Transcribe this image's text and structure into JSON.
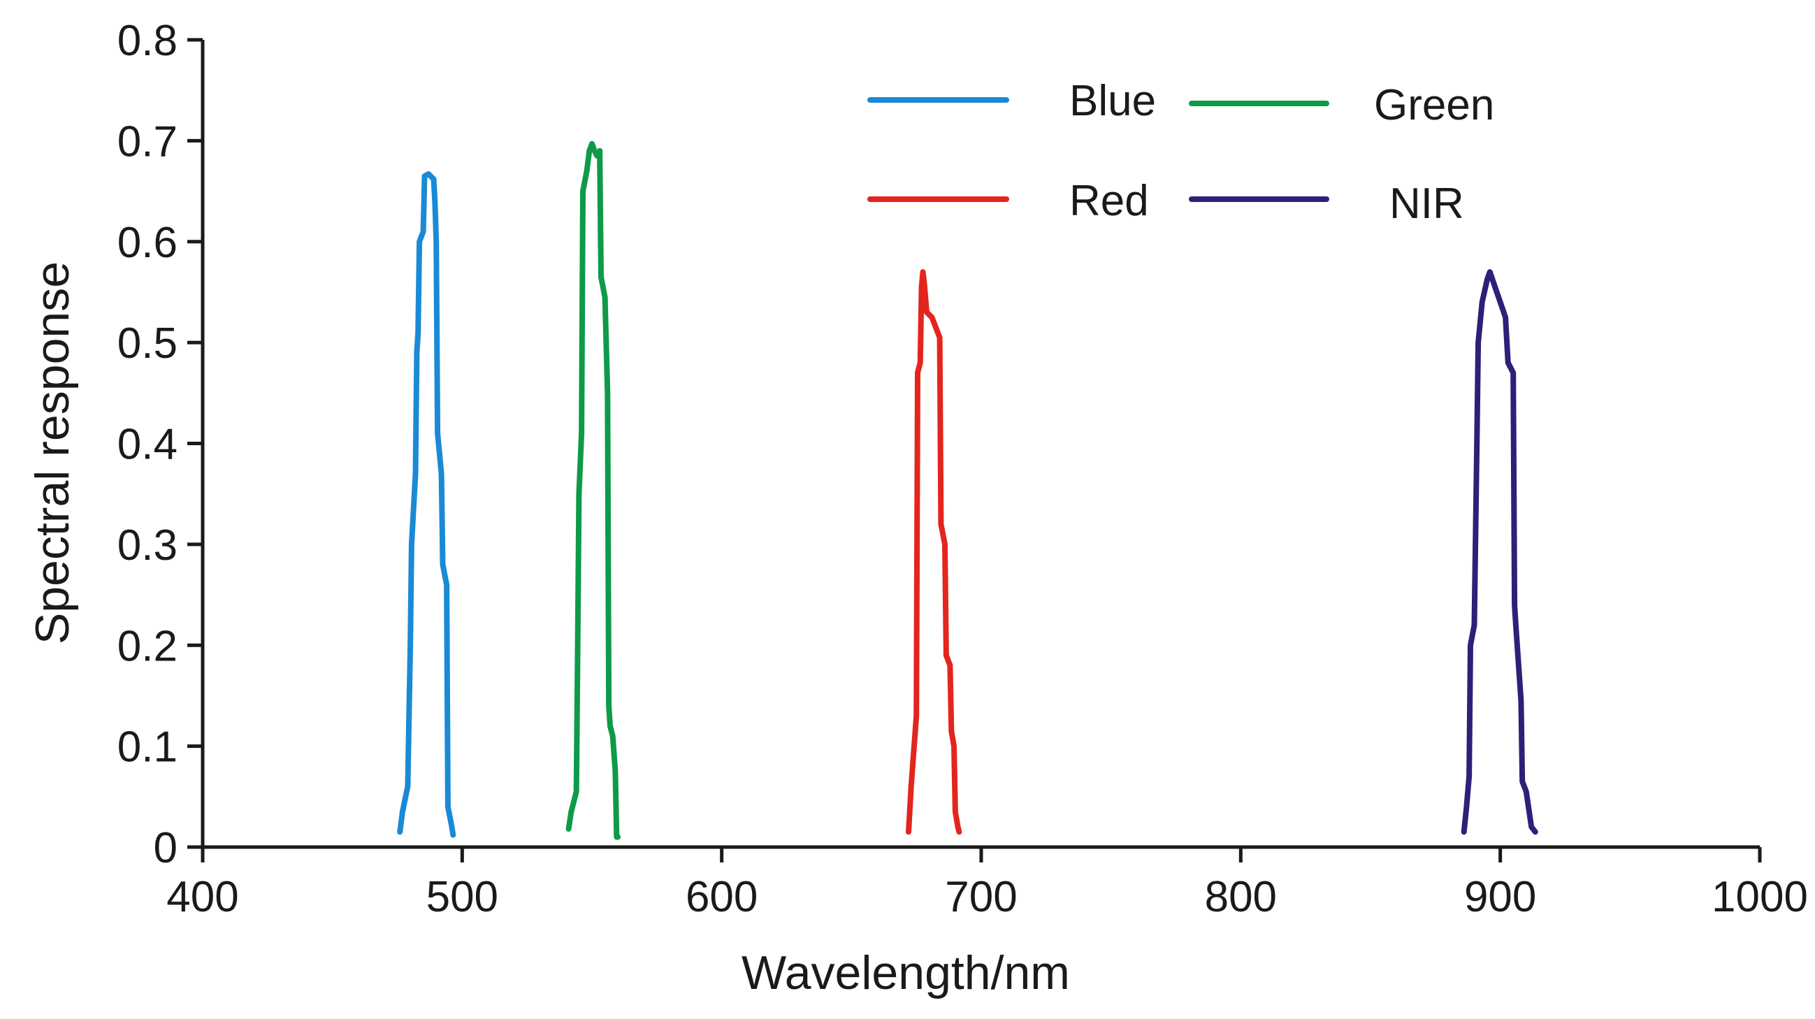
{
  "chart_data": {
    "type": "line",
    "title": "",
    "xlabel": "Wavelength/nm",
    "ylabel": "Spectral response",
    "xlim": [
      400,
      1000
    ],
    "ylim": [
      0,
      0.8
    ],
    "xticks": [
      400,
      500,
      600,
      700,
      800,
      900,
      1000
    ],
    "xtick_labels": [
      "400",
      "500",
      "600",
      "700",
      "800",
      "900",
      "1000"
    ],
    "yticks": [
      0,
      0.1,
      0.2,
      0.3,
      0.4,
      0.5,
      0.6,
      0.7,
      0.8
    ],
    "ytick_labels": [
      "0",
      "0.1",
      "0.2",
      "0.3",
      "0.4",
      "0.5",
      "0.6",
      "0.7",
      "0.8"
    ],
    "grid": false,
    "legend_position": "top-right",
    "series": [
      {
        "name": "Blue",
        "color": "#1a8ad6",
        "points": [
          [
            476,
            0.015
          ],
          [
            477,
            0.035
          ],
          [
            479,
            0.06
          ],
          [
            480,
            0.2
          ],
          [
            480.5,
            0.3
          ],
          [
            482,
            0.37
          ],
          [
            482.5,
            0.49
          ],
          [
            483,
            0.51
          ],
          [
            483.5,
            0.6
          ],
          [
            485,
            0.61
          ],
          [
            485.5,
            0.665
          ],
          [
            487,
            0.667
          ],
          [
            489,
            0.662
          ],
          [
            489.5,
            0.64
          ],
          [
            490,
            0.6
          ],
          [
            490.5,
            0.41
          ],
          [
            492,
            0.37
          ],
          [
            492.5,
            0.28
          ],
          [
            494,
            0.26
          ],
          [
            494.5,
            0.04
          ],
          [
            496,
            0.02
          ],
          [
            496.5,
            0.012
          ]
        ]
      },
      {
        "name": "Green",
        "color": "#0e9a48",
        "points": [
          [
            541,
            0.018
          ],
          [
            542,
            0.035
          ],
          [
            544,
            0.055
          ],
          [
            544.5,
            0.2
          ],
          [
            545,
            0.35
          ],
          [
            546,
            0.41
          ],
          [
            546.5,
            0.65
          ],
          [
            548,
            0.67
          ],
          [
            549,
            0.69
          ],
          [
            550,
            0.697
          ],
          [
            551,
            0.69
          ],
          [
            552,
            0.685
          ],
          [
            553,
            0.69
          ],
          [
            553.5,
            0.565
          ],
          [
            555,
            0.545
          ],
          [
            556,
            0.45
          ],
          [
            556.5,
            0.14
          ],
          [
            557,
            0.12
          ],
          [
            558,
            0.11
          ],
          [
            559,
            0.075
          ],
          [
            559.5,
            0.01
          ],
          [
            560,
            0.01
          ]
        ]
      },
      {
        "name": "Red",
        "color": "#e3251e",
        "points": [
          [
            672,
            0.015
          ],
          [
            673,
            0.06
          ],
          [
            675,
            0.13
          ],
          [
            675.5,
            0.47
          ],
          [
            676.5,
            0.48
          ],
          [
            677,
            0.555
          ],
          [
            677.5,
            0.57
          ],
          [
            678,
            0.56
          ],
          [
            679,
            0.53
          ],
          [
            681,
            0.525
          ],
          [
            684,
            0.505
          ],
          [
            684.5,
            0.32
          ],
          [
            686,
            0.3
          ],
          [
            686.5,
            0.19
          ],
          [
            688,
            0.18
          ],
          [
            688.5,
            0.115
          ],
          [
            689.5,
            0.1
          ],
          [
            690,
            0.035
          ],
          [
            691,
            0.02
          ],
          [
            691.5,
            0.015
          ]
        ]
      },
      {
        "name": "NIR",
        "color": "#2b2178",
        "points": [
          [
            886,
            0.015
          ],
          [
            887,
            0.04
          ],
          [
            888,
            0.07
          ],
          [
            888.5,
            0.2
          ],
          [
            890,
            0.22
          ],
          [
            891,
            0.4
          ],
          [
            891.5,
            0.5
          ],
          [
            893,
            0.54
          ],
          [
            895,
            0.563
          ],
          [
            896,
            0.57
          ],
          [
            898,
            0.555
          ],
          [
            900,
            0.54
          ],
          [
            902,
            0.525
          ],
          [
            903,
            0.48
          ],
          [
            905,
            0.47
          ],
          [
            905.5,
            0.24
          ],
          [
            906,
            0.22
          ],
          [
            908,
            0.145
          ],
          [
            908.5,
            0.065
          ],
          [
            910,
            0.055
          ],
          [
            912,
            0.02
          ],
          [
            913.5,
            0.015
          ]
        ]
      }
    ]
  },
  "legend": {
    "labels": [
      "Blue",
      "Green",
      "Red",
      "NIR"
    ],
    "colors": [
      "#1a8ad6",
      "#0e9a48",
      "#e3251e",
      "#2b2178"
    ]
  }
}
